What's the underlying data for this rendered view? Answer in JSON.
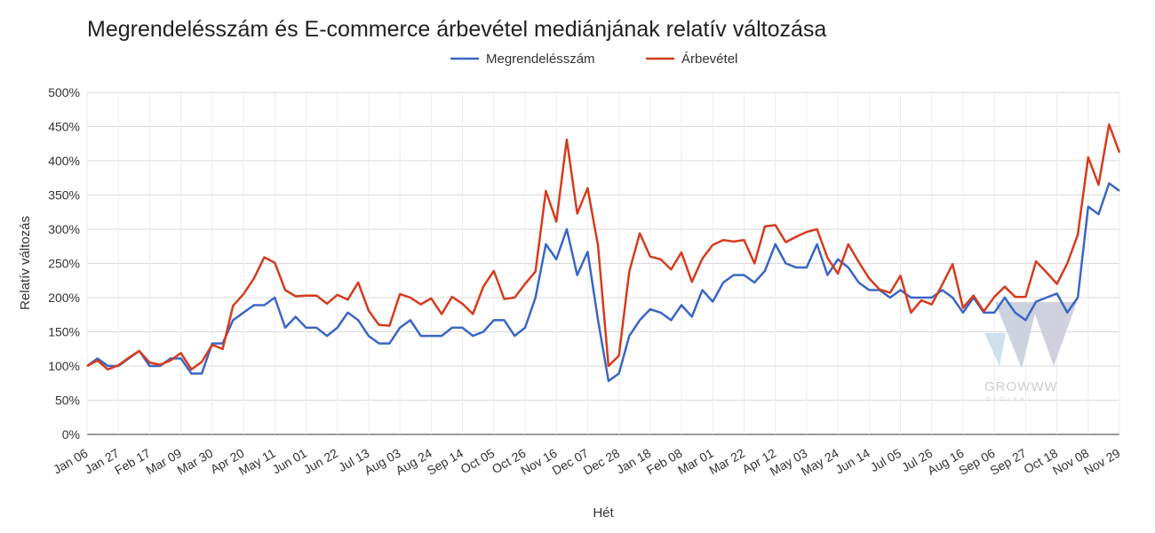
{
  "chart_data": {
    "type": "line",
    "title": "Megrendelésszám és E-commerce árbevétel mediánjának relatív változása",
    "xlabel": "Hét",
    "ylabel": "Relatív változás",
    "ylim": [
      0,
      500
    ],
    "y_ticks": [
      "0%",
      "50%",
      "100%",
      "150%",
      "200%",
      "250%",
      "300%",
      "350%",
      "400%",
      "450%",
      "500%"
    ],
    "x_tick_labels": [
      "Jan 06",
      "Jan 27",
      "Feb 17",
      "Mar 09",
      "Mar 30",
      "Apr 20",
      "May 11",
      "Jun 01",
      "Jun 22",
      "Jul 13",
      "Aug 03",
      "Aug 24",
      "Sep 14",
      "Oct 05",
      "Oct 26",
      "Nov 16",
      "Dec 07",
      "Dec 28",
      "Jan 18",
      "Feb 08",
      "Mar 01",
      "Mar 22",
      "Apr 12",
      "May 03",
      "May 24",
      "Jun 14",
      "Jul 05",
      "Jul 26",
      "Aug 16",
      "Sep 06",
      "Sep 27",
      "Oct 18",
      "Nov 08",
      "Nov 29"
    ],
    "grid": true,
    "legend_position": "top-center",
    "series": [
      {
        "name": "Megrendelésszám",
        "color": "#3b66c4",
        "values": [
          100,
          111,
          100,
          100,
          111,
          122,
          100,
          100,
          111,
          111,
          89,
          89,
          133,
          133,
          167,
          178,
          189,
          189,
          200,
          156,
          172,
          156,
          156,
          144,
          156,
          178,
          167,
          144,
          133,
          133,
          156,
          167,
          144,
          144,
          144,
          156,
          156,
          144,
          150,
          167,
          167,
          144,
          156,
          200,
          278,
          256,
          300,
          233,
          267,
          167,
          78,
          89,
          144,
          167,
          183,
          178,
          167,
          189,
          172,
          211,
          194,
          222,
          233,
          233,
          222,
          239,
          278,
          250,
          244,
          244,
          278,
          233,
          256,
          244,
          222,
          211,
          211,
          200,
          211,
          200,
          200,
          200,
          211,
          200,
          178,
          200,
          178,
          178,
          200,
          178,
          167,
          194,
          200,
          206,
          178,
          200,
          333,
          322,
          367,
          356
        ]
      },
      {
        "name": "Árbevétel",
        "color": "#d63b1e",
        "values": [
          100,
          108,
          95,
          101,
          112,
          122,
          105,
          102,
          108,
          119,
          95,
          106,
          131,
          125,
          188,
          205,
          228,
          259,
          251,
          211,
          202,
          203,
          203,
          191,
          204,
          197,
          222,
          181,
          160,
          159,
          205,
          200,
          190,
          199,
          176,
          201,
          191,
          176,
          216,
          239,
          198,
          200,
          220,
          238,
          356,
          311,
          431,
          323,
          360,
          276,
          100,
          115,
          238,
          294,
          260,
          256,
          241,
          266,
          223,
          257,
          277,
          284,
          282,
          284,
          250,
          304,
          306,
          281,
          289,
          296,
          300,
          258,
          235,
          278,
          252,
          228,
          212,
          207,
          232,
          178,
          196,
          190,
          219,
          249,
          185,
          203,
          180,
          201,
          216,
          201,
          201,
          253,
          237,
          220,
          250,
          292,
          405,
          365,
          453,
          412
        ]
      }
    ]
  },
  "watermark": {
    "brand": "GROWWW",
    "sub": "DIGITAL"
  }
}
